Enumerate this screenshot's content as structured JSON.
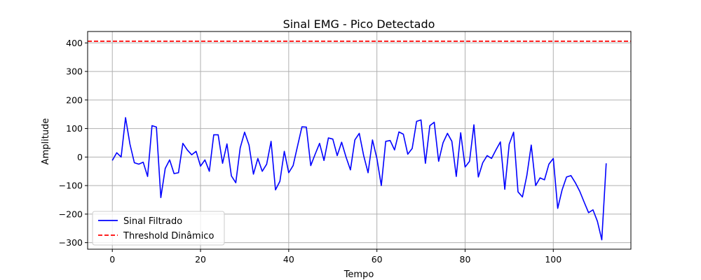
{
  "chart_data": {
    "type": "line",
    "title": "Sinal EMG - Pico Detectado",
    "xlabel": "Tempo",
    "ylabel": "Amplitude",
    "xlim": [
      -5.6,
      117.6
    ],
    "ylim": [
      -323,
      440
    ],
    "x_ticks": [
      0,
      20,
      40,
      60,
      80,
      100
    ],
    "y_ticks": [
      -300,
      -200,
      -100,
      0,
      100,
      200,
      300,
      400
    ],
    "grid": true,
    "legend_position": "lower-left",
    "series": [
      {
        "name": "Sinal Filtrado",
        "color": "#0000ff",
        "style": "solid",
        "x": [
          0,
          1,
          2,
          3,
          4,
          5,
          6,
          7,
          8,
          9,
          10,
          11,
          12,
          13,
          14,
          15,
          16,
          17,
          18,
          19,
          20,
          21,
          22,
          23,
          24,
          25,
          26,
          27,
          28,
          29,
          30,
          31,
          32,
          33,
          34,
          35,
          36,
          37,
          38,
          39,
          40,
          41,
          42,
          43,
          44,
          45,
          46,
          47,
          48,
          49,
          50,
          51,
          52,
          53,
          54,
          55,
          56,
          57,
          58,
          59,
          60,
          61,
          62,
          63,
          64,
          65,
          66,
          67,
          68,
          69,
          70,
          71,
          72,
          73,
          74,
          75,
          76,
          77,
          78,
          79,
          80,
          81,
          82,
          83,
          84,
          85,
          86,
          87,
          88,
          89,
          90,
          91,
          92,
          93,
          94,
          95,
          96,
          97,
          98,
          99,
          100,
          101,
          102,
          103,
          104,
          105,
          106,
          107,
          108,
          109,
          110,
          111,
          112
        ],
        "values": [
          -12,
          15,
          0,
          138,
          45,
          -20,
          -25,
          -18,
          -68,
          110,
          105,
          -142,
          -40,
          -10,
          -58,
          -55,
          48,
          25,
          8,
          20,
          -32,
          -10,
          -50,
          78,
          78,
          -22,
          46,
          -66,
          -90,
          32,
          87,
          42,
          -60,
          -5,
          -50,
          -25,
          55,
          -115,
          -85,
          20,
          -55,
          -30,
          38,
          106,
          105,
          -30,
          10,
          48,
          -12,
          67,
          63,
          5,
          52,
          0,
          -45,
          60,
          83,
          5,
          -55,
          60,
          -5,
          -100,
          55,
          58,
          25,
          88,
          80,
          10,
          30,
          125,
          130,
          -22,
          110,
          122,
          -15,
          50,
          83,
          55,
          -68,
          85,
          -35,
          -15,
          113,
          -70,
          -20,
          5,
          -5,
          25,
          53,
          -113,
          45,
          87,
          -122,
          -140,
          -65,
          42,
          -100,
          -73,
          -80,
          -25,
          -5,
          -180,
          -115,
          -70,
          -65,
          -90,
          -120,
          -158,
          -195,
          -185,
          -225,
          -290,
          -22
        ]
      },
      {
        "name": "Threshold Dinâmico",
        "color": "#ff0000",
        "style": "dashed",
        "y": 406
      }
    ]
  }
}
